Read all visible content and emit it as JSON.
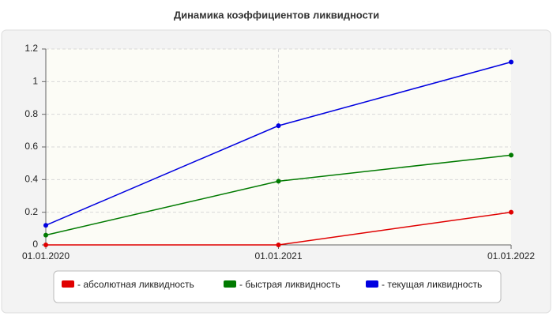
{
  "chart_data": {
    "type": "line",
    "title": "Динамика коэффициентов ликвидности",
    "categories": [
      "01.01.2020",
      "01.01.2021",
      "01.01.2022"
    ],
    "series": [
      {
        "name": "- абсолютная ликвидность",
        "color": "#e00000",
        "values": [
          0,
          0,
          0.2
        ]
      },
      {
        "name": "- быстрая ликвидность",
        "color": "#007a00",
        "values": [
          0.06,
          0.39,
          0.55
        ]
      },
      {
        "name": "- текущая ликвидность",
        "color": "#0000e0",
        "values": [
          0.12,
          0.73,
          1.12
        ]
      }
    ],
    "ylim": [
      0,
      1.2
    ],
    "yticks": [
      0,
      0.2,
      0.4,
      0.6,
      0.8,
      1,
      1.2
    ],
    "grid": true
  }
}
